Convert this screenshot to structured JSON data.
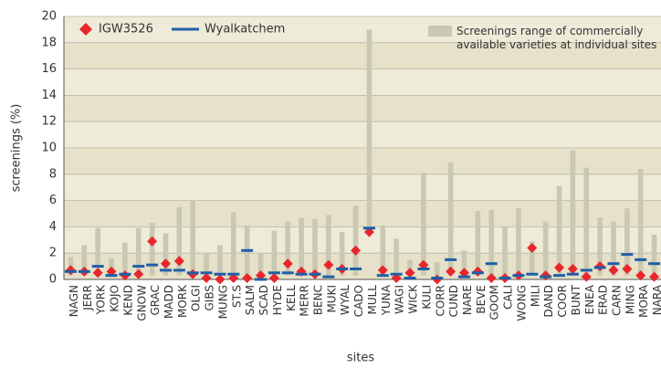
{
  "chart_data": {
    "type": "range-marker",
    "xlabel": "sites",
    "ylabel": "screenings (%)",
    "categories": [
      "NAGN",
      "JERR",
      "YORK",
      "KOJO",
      "KEND",
      "GNOW",
      "GRAC",
      "MADD",
      "MORK",
      "OLGI",
      "GIBS",
      "MUNG",
      "ST.S",
      "SALM",
      "SCAD",
      "HYDE",
      "KELL",
      "MERR",
      "BENC",
      "MUKI",
      "WYAL",
      "CADO",
      "MULL",
      "YUNA",
      "WAGI",
      "WICK",
      "KULI",
      "CORR",
      "CUND",
      "NARE",
      "BEVE",
      "GOOM",
      "CALI",
      "WONG",
      "MILI",
      "DAND",
      "COOR",
      "BUNT",
      "ENEA",
      "ERAD",
      "CARN",
      "MING",
      "MORA",
      "NARA"
    ],
    "series": [
      {
        "name": "Screenings range of commercially available varieties at individual sites",
        "color": "#c9c8b3",
        "low": [
          0.3,
          0.3,
          0.3,
          0.3,
          0.3,
          0.3,
          0.3,
          0.3,
          0.3,
          0.3,
          0.3,
          0.3,
          0.3,
          0.3,
          0.3,
          0.3,
          0.3,
          0.3,
          0.3,
          0.3,
          0.3,
          0.3,
          3.7,
          0.3,
          0.3,
          0.3,
          0.3,
          0.3,
          0.3,
          0.3,
          0.3,
          0.3,
          0.3,
          0.3,
          0.3,
          0.3,
          0.3,
          0.3,
          0.3,
          0.3,
          0.3,
          0.3,
          0.3,
          0.3
        ],
        "high": [
          1.7,
          2.6,
          3.9,
          1.6,
          2.8,
          3.9,
          4.3,
          3.5,
          5.5,
          6.0,
          2.0,
          2.6,
          5.1,
          4.1,
          2.0,
          3.7,
          4.4,
          4.7,
          4.6,
          4.9,
          3.6,
          5.6,
          19.0,
          4.1,
          3.1,
          1.5,
          8.1,
          1.3,
          8.9,
          2.2,
          5.2,
          5.3,
          4.0,
          5.4,
          2.9,
          4.4,
          7.1,
          9.8,
          8.5,
          4.7,
          4.4,
          5.4,
          8.4,
          3.4
        ]
      },
      {
        "name": "IGW3526",
        "color": "#e8262b",
        "marker": "diamond",
        "values": [
          0.7,
          0.6,
          0.5,
          0.6,
          0.3,
          0.4,
          2.9,
          1.2,
          1.4,
          0.4,
          0.1,
          0.0,
          0.1,
          0.1,
          0.3,
          0.1,
          1.2,
          0.6,
          0.4,
          1.1,
          0.8,
          2.2,
          3.6,
          0.7,
          0.1,
          0.5,
          1.1,
          0.0,
          0.6,
          0.5,
          0.6,
          0.1,
          0.1,
          0.3,
          2.4,
          0.3,
          0.9,
          0.8,
          0.2,
          1.0,
          0.7,
          0.8,
          0.3,
          0.2
        ]
      },
      {
        "name": "Wyalkatchem",
        "color": "#1f5fa8",
        "marker": "dash",
        "values": [
          0.6,
          0.6,
          1.0,
          0.3,
          0.4,
          1.0,
          1.1,
          0.7,
          0.7,
          0.5,
          0.5,
          0.4,
          0.4,
          2.2,
          0.0,
          0.5,
          0.5,
          0.4,
          0.4,
          0.2,
          0.8,
          0.8,
          3.9,
          0.3,
          0.4,
          0.1,
          0.8,
          0.1,
          1.5,
          0.2,
          0.5,
          1.2,
          0.1,
          0.3,
          0.4,
          0.2,
          0.3,
          0.4,
          0.7,
          0.9,
          1.2,
          1.9,
          1.5,
          1.2
        ]
      }
    ],
    "ylim": [
      0,
      20
    ],
    "yticks": [
      0,
      2,
      4,
      6,
      8,
      10,
      12,
      14,
      16,
      18,
      20
    ],
    "grid": true
  }
}
